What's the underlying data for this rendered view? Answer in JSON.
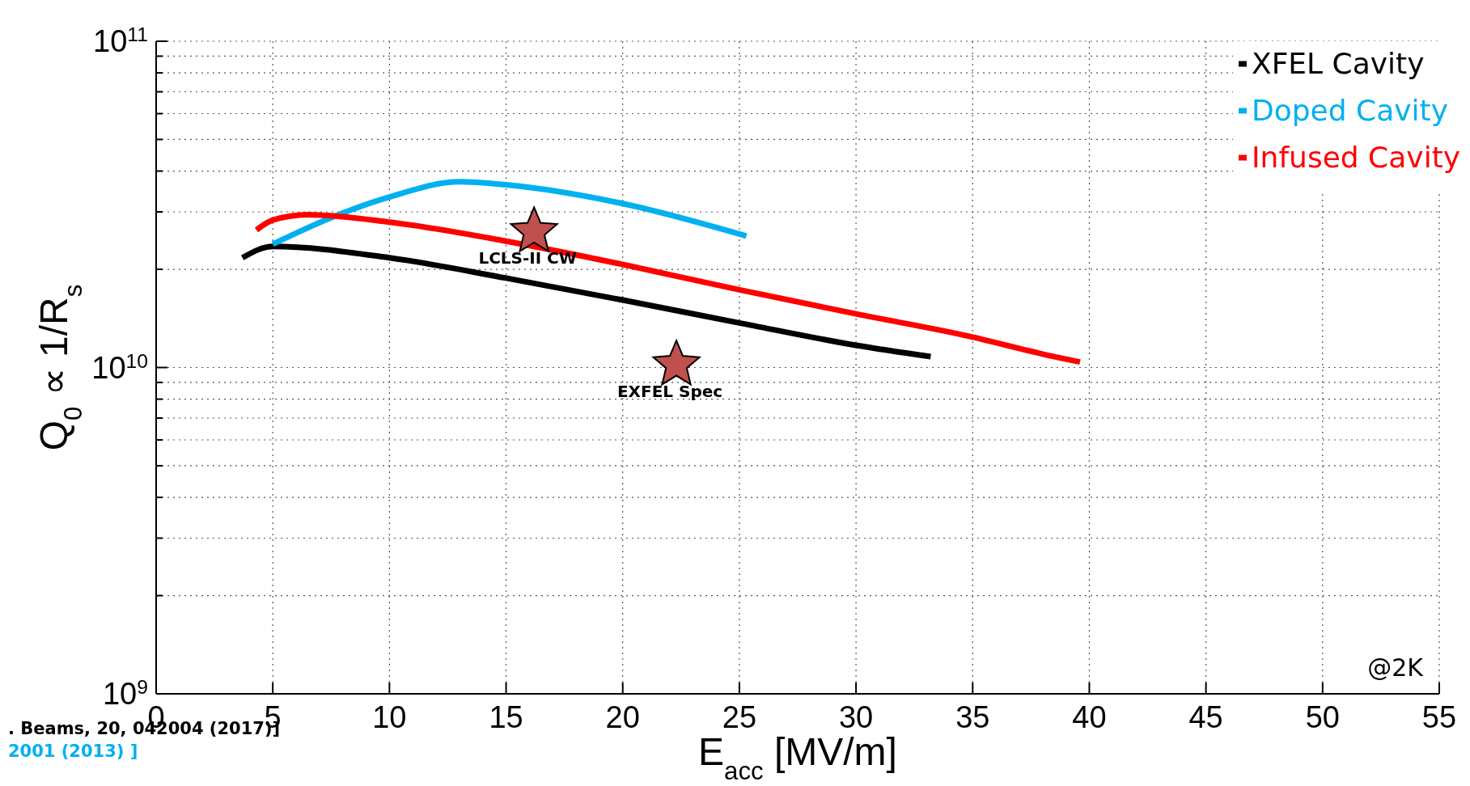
{
  "chart_data": {
    "type": "line",
    "xlabel": "E$_{acc}$ [MV/m]",
    "ylabel": "Q$_{0}$ ∝ 1/R$_{s}$",
    "xlim": [
      0,
      55
    ],
    "xticks": [
      0,
      5,
      10,
      15,
      20,
      25,
      30,
      35,
      40,
      45,
      50,
      55
    ],
    "ylim": [
      1000000000,
      100000000000
    ],
    "log": "y",
    "yticks": [
      {
        "value": 1000000000,
        "label": "10$^{9}$"
      },
      {
        "value": 2000000000,
        "label": null
      },
      {
        "value": 3000000000,
        "label": null
      },
      {
        "value": 4000000000,
        "label": null
      },
      {
        "value": 5000000000,
        "label": null
      },
      {
        "value": 6000000000,
        "label": null
      },
      {
        "value": 7000000000,
        "label": null
      },
      {
        "value": 8000000000,
        "label": null
      },
      {
        "value": 9000000000,
        "label": null
      },
      {
        "value": 10000000000,
        "label": "10$^{10}$"
      },
      {
        "value": 20000000000,
        "label": null
      },
      {
        "value": 30000000000,
        "label": null
      },
      {
        "value": 40000000000,
        "label": null
      },
      {
        "value": 50000000000,
        "label": null
      },
      {
        "value": 60000000000,
        "label": null
      },
      {
        "value": 70000000000,
        "label": null
      },
      {
        "value": 80000000000,
        "label": null
      },
      {
        "value": 90000000000,
        "label": null
      },
      {
        "value": 100000000000,
        "label": "10$^{11}$"
      }
    ],
    "grid": true,
    "legend": "top right",
    "line_style": "solid",
    "series": [
      {
        "name": "XFEL Cavity",
        "color": "#000000",
        "x": [
          3.7,
          5,
          10,
          15,
          20,
          25,
          30,
          33.2
        ],
        "values": [
          21700000000,
          23500000000,
          21700000000,
          18800000000,
          16100000000,
          13700000000,
          11700000000,
          10800000000
        ]
      },
      {
        "name": "Doped Cavity",
        "color": "#00b0f0",
        "x": [
          5,
          7.5,
          10,
          13,
          15,
          20,
          25.3
        ],
        "values": [
          23900000000,
          28800000000,
          33300000000,
          37100000000,
          36300000000,
          31800000000,
          25300000000
        ]
      },
      {
        "name": "Infused Cavity",
        "color": "#ff0000",
        "x": [
          4.3,
          5,
          6.5,
          10,
          15,
          20,
          25,
          30,
          35,
          38,
          39.6
        ],
        "values": [
          26400000000,
          28300000000,
          29400000000,
          27900000000,
          24400000000,
          20700000000,
          17300000000,
          14600000000,
          12400000000,
          11000000000,
          10400000000
        ]
      },
      {
        "name": "LCLS-II CW",
        "type": "scatter",
        "marker": "star",
        "color": "#c0504d",
        "x": [
          16.2
        ],
        "values": [
          26100000000
        ]
      },
      {
        "name": "EXFEL Spec",
        "type": "scatter",
        "marker": "star",
        "color": "#c0504d",
        "x": [
          22.3
        ],
        "values": [
          10200000000
        ]
      }
    ],
    "annotations": [
      "@2K",
      ". Beams, 20, 042004 (2017)]",
      "2001  (2013) ]"
    ]
  }
}
